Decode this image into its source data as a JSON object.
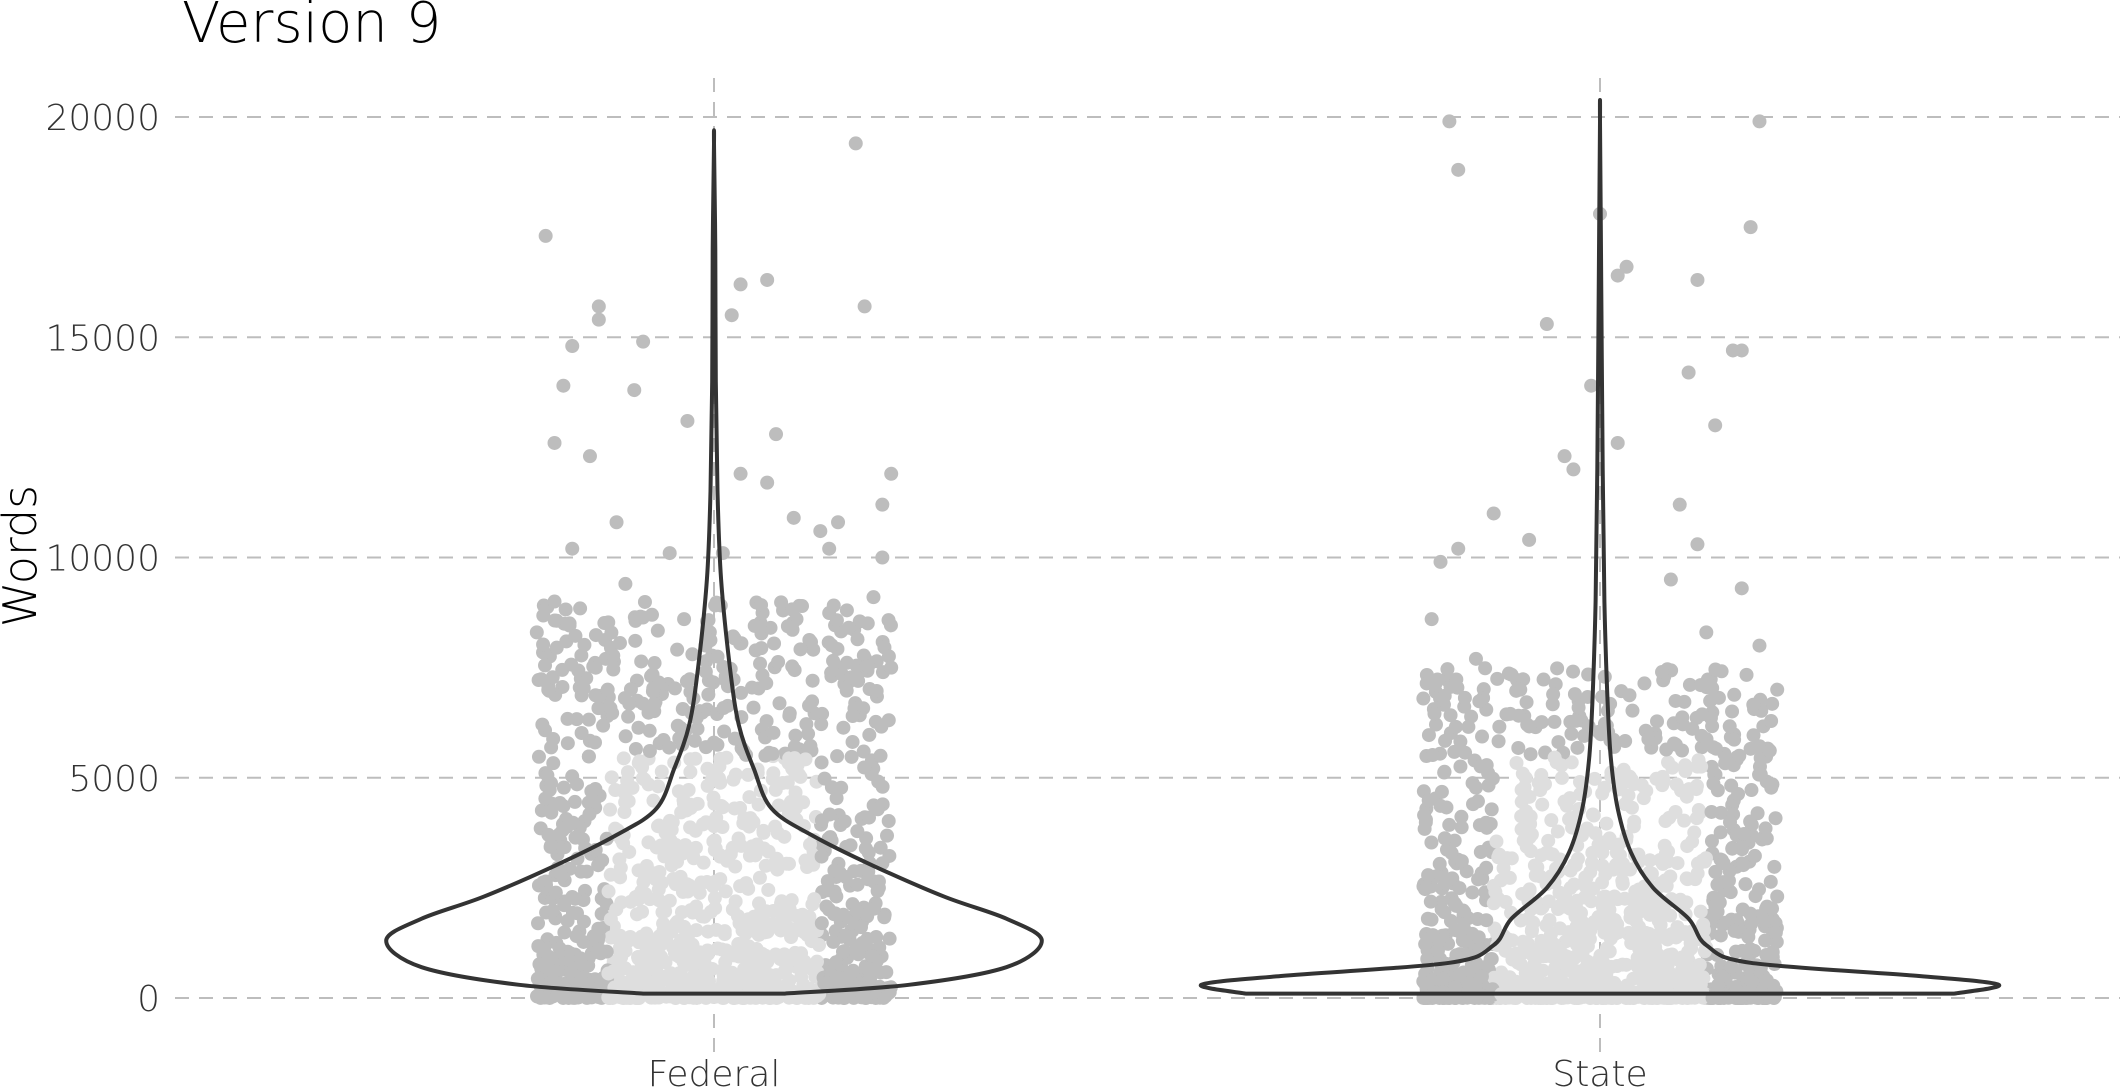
{
  "chart_data": {
    "type": "violin",
    "title": "Version 9",
    "xlabel": "",
    "ylabel": "Words",
    "categories": [
      "Federal",
      "State"
    ],
    "y_ticks": [
      0,
      5000,
      10000,
      15000,
      20000
    ],
    "y_tick_labels": [
      "0",
      "5000",
      "10000",
      "15000",
      "20000"
    ],
    "ylim": [
      -1500,
      21000
    ],
    "grid": "horizontal dashed, plus vertical dashed at categories",
    "colors": {
      "violin_outline": "#333333",
      "points_outer": "#bdbdbd",
      "points_inner": "#dedede",
      "grid": "#bdbdbd"
    },
    "violins": [
      {
        "category": "Federal",
        "profile": [
          {
            "y": 100,
            "halfwidth": 0.08
          },
          {
            "y": 300,
            "halfwidth": 0.22
          },
          {
            "y": 700,
            "halfwidth": 0.33
          },
          {
            "y": 1300,
            "halfwidth": 0.37
          },
          {
            "y": 1800,
            "halfwidth": 0.33
          },
          {
            "y": 2300,
            "halfwidth": 0.26
          },
          {
            "y": 3000,
            "halfwidth": 0.18
          },
          {
            "y": 3700,
            "halfwidth": 0.11
          },
          {
            "y": 4300,
            "halfwidth": 0.065
          },
          {
            "y": 5200,
            "halfwidth": 0.045
          },
          {
            "y": 6200,
            "halfwidth": 0.028
          },
          {
            "y": 7500,
            "halfwidth": 0.018
          },
          {
            "y": 9500,
            "halfwidth": 0.008
          },
          {
            "y": 11500,
            "halfwidth": 0.004
          },
          {
            "y": 14000,
            "halfwidth": 0.002
          },
          {
            "y": 17000,
            "halfwidth": 0.0015
          },
          {
            "y": 19400,
            "halfwidth": 0.0
          }
        ]
      },
      {
        "category": "State",
        "profile": [
          {
            "y": 100,
            "halfwidth": 0.4
          },
          {
            "y": 300,
            "halfwidth": 0.45
          },
          {
            "y": 500,
            "halfwidth": 0.36
          },
          {
            "y": 800,
            "halfwidth": 0.17
          },
          {
            "y": 1200,
            "halfwidth": 0.12
          },
          {
            "y": 1800,
            "halfwidth": 0.1
          },
          {
            "y": 2500,
            "halfwidth": 0.06
          },
          {
            "y": 3300,
            "halfwidth": 0.035
          },
          {
            "y": 4300,
            "halfwidth": 0.02
          },
          {
            "y": 5500,
            "halfwidth": 0.012
          },
          {
            "y": 7000,
            "halfwidth": 0.008
          },
          {
            "y": 9000,
            "halfwidth": 0.005
          },
          {
            "y": 12000,
            "halfwidth": 0.003
          },
          {
            "y": 16000,
            "halfwidth": 0.0015
          },
          {
            "y": 19900,
            "halfwidth": 0.0
          }
        ]
      }
    ],
    "points": {
      "description_note": "jittered individual documents",
      "Federal": [
        {
          "jitter": -0.19,
          "y": 17300
        },
        {
          "jitter": 0.16,
          "y": 19400
        },
        {
          "jitter": -0.18,
          "y": 12600
        },
        {
          "jitter": -0.17,
          "y": 13900
        },
        {
          "jitter": -0.16,
          "y": 14800
        },
        {
          "jitter": -0.13,
          "y": 15700
        },
        {
          "jitter": -0.13,
          "y": 15400
        },
        {
          "jitter": -0.08,
          "y": 14900
        },
        {
          "jitter": 0.03,
          "y": 16200
        },
        {
          "jitter": 0.06,
          "y": 16300
        },
        {
          "jitter": 0.17,
          "y": 15700
        },
        {
          "jitter": 0.02,
          "y": 15500
        },
        {
          "jitter": -0.09,
          "y": 13800
        },
        {
          "jitter": -0.03,
          "y": 13100
        },
        {
          "jitter": 0.07,
          "y": 12800
        },
        {
          "jitter": -0.14,
          "y": 12300
        },
        {
          "jitter": 0.03,
          "y": 11900
        },
        {
          "jitter": 0.06,
          "y": 11700
        },
        {
          "jitter": 0.2,
          "y": 11900
        },
        {
          "jitter": 0.19,
          "y": 11200
        },
        {
          "jitter": 0.14,
          "y": 10800
        },
        {
          "jitter": 0.13,
          "y": 10200
        },
        {
          "jitter": 0.19,
          "y": 10000
        },
        {
          "jitter": -0.16,
          "y": 10200
        },
        {
          "jitter": -0.11,
          "y": 10800
        },
        {
          "jitter": -0.05,
          "y": 10100
        },
        {
          "jitter": 0.01,
          "y": 10100
        },
        {
          "jitter": -0.1,
          "y": 9400
        },
        {
          "jitter": 0.18,
          "y": 9100
        },
        {
          "jitter": 0.15,
          "y": 8800
        },
        {
          "jitter": 0.09,
          "y": 10900
        },
        {
          "jitter": 0.12,
          "y": 10600
        },
        {
          "jitter": -0.2,
          "y": 8300
        },
        {
          "jitter": -0.18,
          "y": 9000
        },
        {
          "jitter": -0.07,
          "y": 8700
        },
        {
          "jitter": 0.2,
          "y": 7500
        },
        {
          "jitter": 0.16,
          "y": 7300
        },
        {
          "jitter": -0.12,
          "y": 7000
        }
      ],
      "State": [
        {
          "jitter": -0.17,
          "y": 19900
        },
        {
          "jitter": 0.18,
          "y": 19900
        },
        {
          "jitter": -0.16,
          "y": 18800
        },
        {
          "jitter": 0.17,
          "y": 17500
        },
        {
          "jitter": 0.0,
          "y": 17800
        },
        {
          "jitter": 0.02,
          "y": 16400
        },
        {
          "jitter": 0.03,
          "y": 16600
        },
        {
          "jitter": 0.11,
          "y": 16300
        },
        {
          "jitter": 0.16,
          "y": 14700
        },
        {
          "jitter": 0.15,
          "y": 14700
        },
        {
          "jitter": 0.1,
          "y": 14200
        },
        {
          "jitter": -0.06,
          "y": 15300
        },
        {
          "jitter": 0.13,
          "y": 13000
        },
        {
          "jitter": 0.02,
          "y": 12600
        },
        {
          "jitter": -0.01,
          "y": 13900
        },
        {
          "jitter": -0.04,
          "y": 12300
        },
        {
          "jitter": -0.03,
          "y": 12000
        },
        {
          "jitter": -0.12,
          "y": 11000
        },
        {
          "jitter": 0.09,
          "y": 11200
        },
        {
          "jitter": -0.08,
          "y": 10400
        },
        {
          "jitter": 0.11,
          "y": 10300
        },
        {
          "jitter": -0.18,
          "y": 9900
        },
        {
          "jitter": -0.16,
          "y": 10200
        },
        {
          "jitter": 0.08,
          "y": 9500
        },
        {
          "jitter": 0.16,
          "y": 9300
        },
        {
          "jitter": -0.19,
          "y": 8600
        },
        {
          "jitter": 0.12,
          "y": 8300
        },
        {
          "jitter": 0.18,
          "y": 8000
        },
        {
          "jitter": -0.14,
          "y": 7700
        },
        {
          "jitter": 0.2,
          "y": 7000
        },
        {
          "jitter": -0.09,
          "y": 7000
        },
        {
          "jitter": 0.07,
          "y": 7400
        }
      ]
    }
  }
}
